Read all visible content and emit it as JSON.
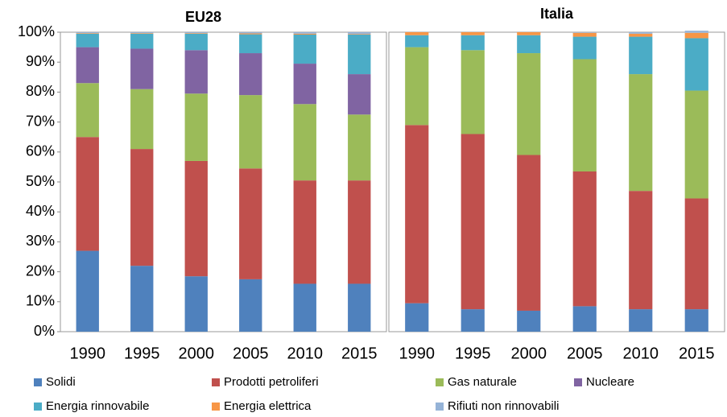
{
  "chart_data": {
    "type": "bar",
    "stacked": true,
    "ylim": [
      0,
      100
    ],
    "yticks": [
      {
        "value": 0,
        "label": "0%"
      },
      {
        "value": 10,
        "label": "10%"
      },
      {
        "value": 20,
        "label": "20%"
      },
      {
        "value": 30,
        "label": "30%"
      },
      {
        "value": 40,
        "label": "40%"
      },
      {
        "value": 50,
        "label": "50%"
      },
      {
        "value": 60,
        "label": "60%"
      },
      {
        "value": 70,
        "label": "70%"
      },
      {
        "value": 80,
        "label": "80%"
      },
      {
        "value": 90,
        "label": "90%"
      },
      {
        "value": 100,
        "label": "100%"
      }
    ],
    "categories": [
      "1990",
      "1995",
      "2000",
      "2005",
      "2010",
      "2015"
    ],
    "series": [
      {
        "name": "Solidi",
        "color": "#4f81bd"
      },
      {
        "name": "Prodotti petroliferi",
        "color": "#c0504d"
      },
      {
        "name": "Gas naturale",
        "color": "#9bbb59"
      },
      {
        "name": "Nucleare",
        "color": "#8064a2"
      },
      {
        "name": "Energia rinnovabile",
        "color": "#4bacc6"
      },
      {
        "name": "Energia elettrica",
        "color": "#f79646"
      },
      {
        "name": "Rifiuti non rinnovabili",
        "color": "#95b3d7"
      }
    ],
    "panels": [
      {
        "title": "EU28",
        "values": [
          [
            27,
            22,
            18.5,
            17.5,
            16,
            16
          ],
          [
            38,
            39,
            38.5,
            37,
            34.5,
            34.5
          ],
          [
            18,
            20,
            22.5,
            24.5,
            25.5,
            22
          ],
          [
            12,
            13.5,
            14.5,
            14,
            13.5,
            13.5
          ],
          [
            4.5,
            5,
            5.5,
            6.3,
            9.7,
            13.2
          ],
          [
            0.2,
            0.2,
            0.2,
            0.3,
            0.3,
            0.2
          ],
          [
            0.3,
            0.3,
            0.3,
            0.4,
            0.5,
            0.6
          ]
        ]
      },
      {
        "title": "Italia",
        "values": [
          [
            9.5,
            7.5,
            7,
            8.5,
            7.5,
            7.5
          ],
          [
            59.5,
            58.5,
            52,
            45,
            39.5,
            37
          ],
          [
            26,
            28,
            34,
            37.5,
            39,
            36
          ],
          [
            0,
            0,
            0,
            0,
            0,
            0
          ],
          [
            4,
            5,
            6,
            7.5,
            12.5,
            17.5
          ],
          [
            1,
            1,
            1,
            1.3,
            1,
            1.8
          ],
          [
            0,
            0,
            0,
            0.2,
            0.5,
            0.7
          ]
        ]
      }
    ]
  }
}
